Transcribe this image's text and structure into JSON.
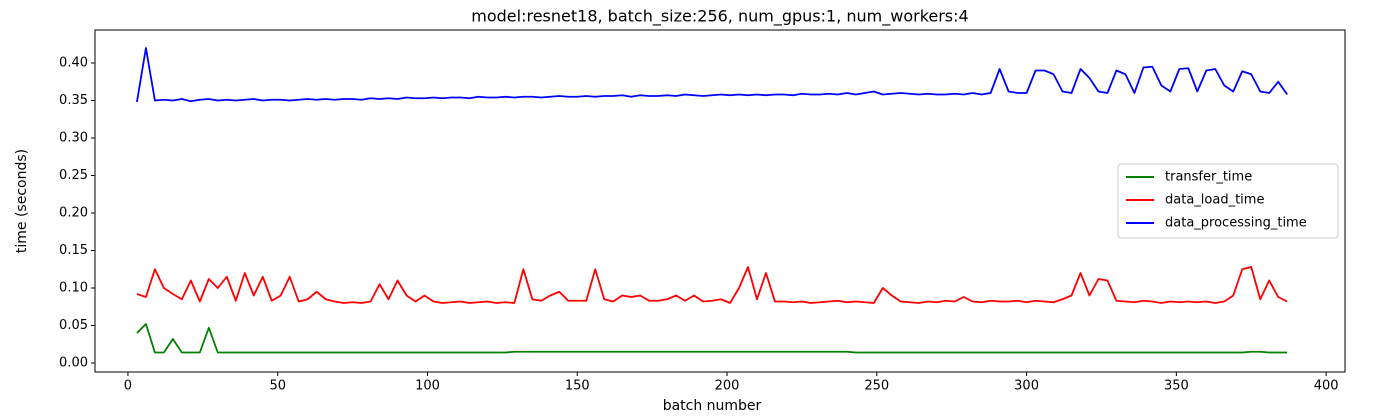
{
  "chart_data": {
    "type": "line",
    "title": "model:resnet18, batch_size:256, num_gpus:1, num_workers:4",
    "x_label": "batch number",
    "y_label": "time (seconds)",
    "x": [
      3,
      6,
      9,
      12,
      15,
      18,
      21,
      24,
      27,
      30,
      33,
      36,
      39,
      42,
      45,
      48,
      51,
      54,
      57,
      60,
      63,
      66,
      69,
      72,
      75,
      78,
      81,
      84,
      87,
      90,
      93,
      96,
      99,
      102,
      105,
      108,
      111,
      114,
      117,
      120,
      123,
      126,
      129,
      132,
      135,
      138,
      141,
      144,
      147,
      150,
      153,
      156,
      159,
      162,
      165,
      168,
      171,
      174,
      177,
      180,
      183,
      186,
      189,
      192,
      195,
      198,
      201,
      204,
      207,
      210,
      213,
      216,
      219,
      222,
      225,
      228,
      231,
      234,
      237,
      240,
      243,
      246,
      249,
      252,
      255,
      258,
      261,
      264,
      267,
      270,
      273,
      276,
      279,
      282,
      285,
      288,
      291,
      294,
      297,
      300,
      303,
      306,
      309,
      312,
      315,
      318,
      321,
      324,
      327,
      330,
      333,
      336,
      339,
      342,
      345,
      348,
      351,
      354,
      357,
      360,
      363,
      366,
      369,
      372,
      375,
      378,
      381,
      384,
      387
    ],
    "series": [
      {
        "name": "transfer_time",
        "color": "#008000",
        "values": [
          0.04,
          0.052,
          0.014,
          0.014,
          0.032,
          0.014,
          0.014,
          0.014,
          0.047,
          0.014,
          0.014,
          0.014,
          0.014,
          0.014,
          0.014,
          0.014,
          0.014,
          0.014,
          0.014,
          0.014,
          0.014,
          0.014,
          0.014,
          0.014,
          0.014,
          0.014,
          0.014,
          0.014,
          0.014,
          0.014,
          0.014,
          0.014,
          0.014,
          0.014,
          0.014,
          0.014,
          0.014,
          0.014,
          0.014,
          0.014,
          0.014,
          0.014,
          0.015,
          0.015,
          0.015,
          0.015,
          0.015,
          0.015,
          0.015,
          0.015,
          0.015,
          0.015,
          0.015,
          0.015,
          0.015,
          0.015,
          0.015,
          0.015,
          0.015,
          0.015,
          0.015,
          0.015,
          0.015,
          0.015,
          0.015,
          0.015,
          0.015,
          0.015,
          0.015,
          0.015,
          0.015,
          0.015,
          0.015,
          0.015,
          0.015,
          0.015,
          0.015,
          0.015,
          0.015,
          0.015,
          0.014,
          0.014,
          0.014,
          0.014,
          0.014,
          0.014,
          0.014,
          0.014,
          0.014,
          0.014,
          0.014,
          0.014,
          0.014,
          0.014,
          0.014,
          0.014,
          0.014,
          0.014,
          0.014,
          0.014,
          0.014,
          0.014,
          0.014,
          0.014,
          0.014,
          0.014,
          0.014,
          0.014,
          0.014,
          0.014,
          0.014,
          0.014,
          0.014,
          0.014,
          0.014,
          0.014,
          0.014,
          0.014,
          0.014,
          0.014,
          0.014,
          0.014,
          0.014,
          0.014,
          0.015,
          0.015,
          0.014,
          0.014,
          0.014
        ]
      },
      {
        "name": "data_load_time",
        "color": "#ff0000",
        "values": [
          0.092,
          0.088,
          0.125,
          0.1,
          0.092,
          0.085,
          0.11,
          0.082,
          0.112,
          0.1,
          0.115,
          0.083,
          0.12,
          0.09,
          0.115,
          0.083,
          0.09,
          0.115,
          0.082,
          0.085,
          0.095,
          0.085,
          0.082,
          0.08,
          0.081,
          0.08,
          0.082,
          0.105,
          0.085,
          0.11,
          0.09,
          0.082,
          0.09,
          0.082,
          0.08,
          0.081,
          0.082,
          0.08,
          0.081,
          0.082,
          0.08,
          0.081,
          0.08,
          0.125,
          0.085,
          0.083,
          0.09,
          0.095,
          0.083,
          0.083,
          0.083,
          0.125,
          0.085,
          0.082,
          0.09,
          0.088,
          0.09,
          0.083,
          0.083,
          0.085,
          0.09,
          0.083,
          0.09,
          0.082,
          0.083,
          0.085,
          0.08,
          0.1,
          0.128,
          0.085,
          0.12,
          0.082,
          0.082,
          0.081,
          0.082,
          0.08,
          0.081,
          0.082,
          0.083,
          0.081,
          0.082,
          0.081,
          0.08,
          0.1,
          0.09,
          0.082,
          0.081,
          0.08,
          0.082,
          0.081,
          0.083,
          0.082,
          0.088,
          0.082,
          0.081,
          0.083,
          0.082,
          0.082,
          0.083,
          0.081,
          0.083,
          0.082,
          0.081,
          0.085,
          0.09,
          0.12,
          0.09,
          0.112,
          0.11,
          0.083,
          0.082,
          0.081,
          0.083,
          0.082,
          0.08,
          0.082,
          0.081,
          0.082,
          0.081,
          0.082,
          0.08,
          0.082,
          0.09,
          0.125,
          0.128,
          0.085,
          0.11,
          0.088,
          0.082
        ]
      },
      {
        "name": "data_processing_time",
        "color": "#0000ff",
        "values": [
          0.348,
          0.42,
          0.35,
          0.351,
          0.35,
          0.352,
          0.349,
          0.351,
          0.352,
          0.35,
          0.351,
          0.35,
          0.351,
          0.352,
          0.35,
          0.351,
          0.351,
          0.35,
          0.351,
          0.352,
          0.351,
          0.352,
          0.351,
          0.352,
          0.352,
          0.351,
          0.353,
          0.352,
          0.353,
          0.352,
          0.354,
          0.353,
          0.353,
          0.354,
          0.353,
          0.354,
          0.354,
          0.353,
          0.355,
          0.354,
          0.354,
          0.355,
          0.354,
          0.355,
          0.355,
          0.354,
          0.355,
          0.356,
          0.355,
          0.355,
          0.356,
          0.355,
          0.356,
          0.356,
          0.357,
          0.355,
          0.357,
          0.356,
          0.356,
          0.357,
          0.356,
          0.358,
          0.357,
          0.356,
          0.357,
          0.358,
          0.357,
          0.358,
          0.357,
          0.358,
          0.357,
          0.358,
          0.358,
          0.357,
          0.359,
          0.358,
          0.358,
          0.359,
          0.358,
          0.36,
          0.358,
          0.36,
          0.362,
          0.358,
          0.359,
          0.36,
          0.359,
          0.358,
          0.359,
          0.358,
          0.358,
          0.359,
          0.358,
          0.36,
          0.358,
          0.36,
          0.392,
          0.362,
          0.36,
          0.36,
          0.39,
          0.39,
          0.385,
          0.362,
          0.36,
          0.392,
          0.38,
          0.362,
          0.36,
          0.39,
          0.385,
          0.36,
          0.394,
          0.395,
          0.37,
          0.362,
          0.392,
          0.393,
          0.362,
          0.39,
          0.392,
          0.37,
          0.362,
          0.389,
          0.385,
          0.362,
          0.36,
          0.375,
          0.358
        ]
      }
    ],
    "xlim": [
      -11,
      406.3
    ],
    "ylim": [
      -0.012,
      0.444
    ],
    "xticks": [
      0,
      50,
      100,
      150,
      200,
      250,
      300,
      350,
      400
    ],
    "yticks": [
      {
        "value": 0,
        "label": "0.00"
      },
      {
        "value": 0.05,
        "label": "0.05"
      },
      {
        "value": 0.1,
        "label": "0.10"
      },
      {
        "value": 0.15,
        "label": "0.15"
      },
      {
        "value": 0.2,
        "label": "0.20"
      },
      {
        "value": 0.25,
        "label": "0.25"
      },
      {
        "value": 0.3,
        "label": "0.30"
      },
      {
        "value": 0.35,
        "label": "0.35"
      },
      {
        "value": 0.4,
        "label": "0.40"
      }
    ],
    "grid": false,
    "legend": "center right"
  }
}
